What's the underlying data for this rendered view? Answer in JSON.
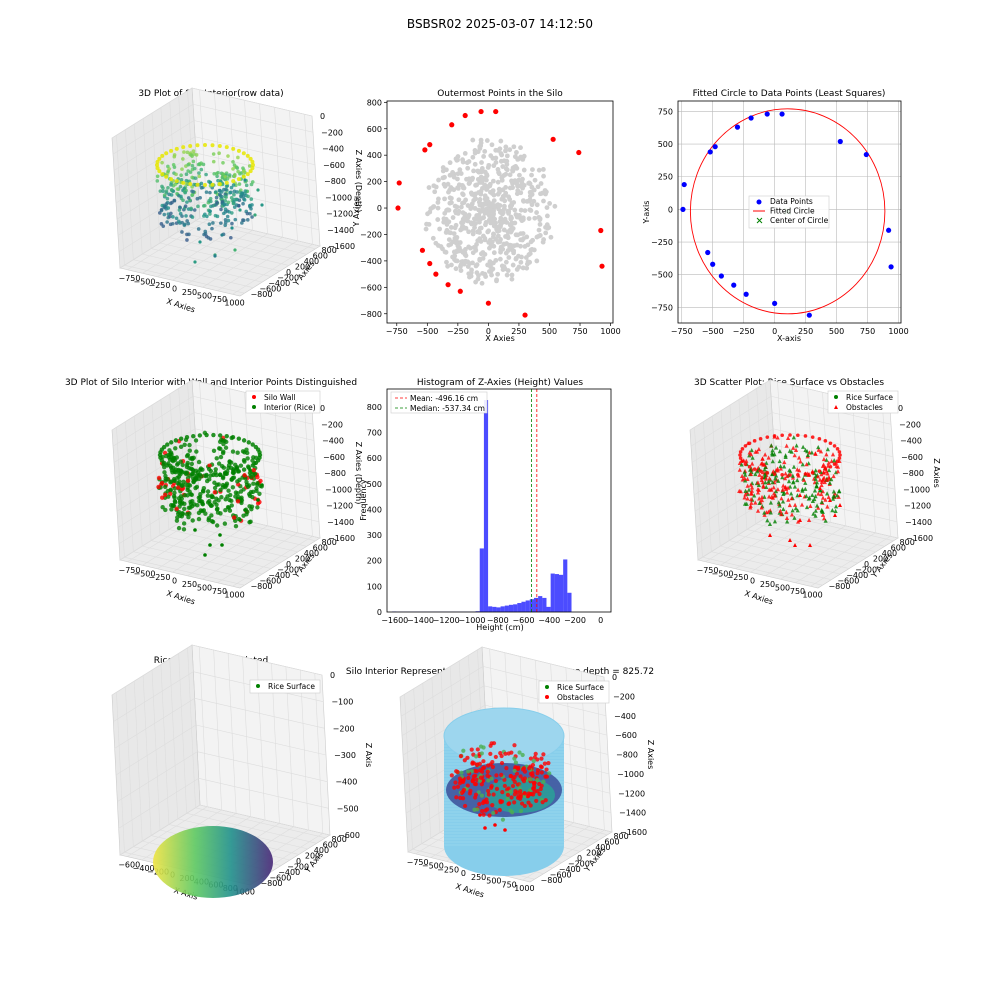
{
  "suptitle": "BSBSR02 2025-03-07 14:12:50",
  "colors": {
    "wall": "#ff0000",
    "rice": "#008000",
    "hist": "#0000ff",
    "gray": "#cfcfcf",
    "fit_circle": "#ff0000",
    "data_points": "#0000ff",
    "center": "#008000",
    "cylinder": "#87ceeb",
    "pane": "#f2f2f2",
    "grid": "#dddddd"
  },
  "panels": {
    "p1": {
      "title": "3D Plot of Silo Interior(row data)",
      "xlabel": "X Axies",
      "ylabel": "Y Axies",
      "zlabel": "Z Axies (Depth)",
      "xticks": [
        "−750",
        "−500",
        "−250",
        "0",
        "250",
        "500",
        "750",
        "1000"
      ],
      "yticks": [
        "800",
        "600",
        "400",
        "200",
        "0",
        "−200",
        "−400",
        "−600",
        "−800"
      ],
      "zticks": [
        "0",
        "−200",
        "−400",
        "−600",
        "−800",
        "−1000",
        "−1200",
        "−1400",
        "−1600"
      ]
    },
    "p4": {
      "title": "3D Plot of Silo Interior with Wall and Interior Points Distinguished",
      "xlabel": "X Axies",
      "ylabel": "Y Axies",
      "zlabel": "Z Axies (Depth)",
      "xticks": [
        "−750",
        "−500",
        "−250",
        "0",
        "250",
        "500",
        "750",
        "1000"
      ],
      "yticks": [
        "800",
        "600",
        "400",
        "200",
        "0",
        "−200",
        "−400",
        "−600",
        "−800"
      ],
      "zticks": [
        "0",
        "−200",
        "−400",
        "−600",
        "−800",
        "−1000",
        "−1200",
        "−1400",
        "−1600"
      ],
      "legend": [
        "Silo Wall",
        "Interior (Rice)"
      ]
    },
    "p6": {
      "title": "3D Scatter Plot: Rice Surface vs Obstacles",
      "xlabel": "X Axies",
      "ylabel": "Y Axies",
      "zlabel": "Z Axies",
      "xticks": [
        "−750",
        "−500",
        "−250",
        "0",
        "250",
        "500",
        "750",
        "1000"
      ],
      "yticks": [
        "800",
        "600",
        "400",
        "200",
        "0",
        "−200",
        "−400",
        "−600",
        "−800"
      ],
      "zticks": [
        "0",
        "−200",
        "−400",
        "−600",
        "−800",
        "−1000",
        "−1200",
        "−1400",
        "−1600"
      ],
      "legend": [
        "Rice Surface",
        "Obstacles"
      ]
    },
    "p7": {
      "title": "Rice Surface Interpolated",
      "subtitle": "depth = 825.72",
      "xlabel": "X Axis",
      "ylabel": "Y Axis",
      "zlabel": "Z Axis",
      "xticks": [
        "−600",
        "−400",
        "−200",
        "0",
        "200",
        "400",
        "600",
        "800",
        "1000"
      ],
      "yticks": [
        "800",
        "600",
        "400",
        "200",
        "0",
        "−200",
        "−400",
        "−600",
        "−800"
      ],
      "zticks": [
        "0",
        "−100",
        "−200",
        "−300",
        "−400",
        "−500",
        "−600"
      ],
      "legend": [
        "Rice Surface"
      ]
    },
    "p8": {
      "title": "Silo Interior Representation using weighted average depth = 825.72",
      "xlabel": "X Axies",
      "ylabel": "Y Axies",
      "zlabel": "Z Axies",
      "xticks": [
        "−750",
        "−500",
        "−250",
        "0",
        "250",
        "500",
        "750",
        "1000"
      ],
      "yticks": [
        "800",
        "600",
        "400",
        "200",
        "0",
        "−200",
        "−400",
        "−600",
        "−800"
      ],
      "zticks": [
        "0",
        "−200",
        "−400",
        "−600",
        "−800",
        "−1000",
        "−1200",
        "−1400",
        "−1600"
      ],
      "legend": [
        "Rice Surface",
        "Obstacles"
      ]
    }
  },
  "chart_data": [
    {
      "type": "scatter",
      "id": "outermost",
      "title": "Outermost Points in the Silo",
      "xlabel": "X Axies",
      "ylabel": "Y Axies",
      "xlim": [
        -830,
        1020
      ],
      "ylim": [
        -870,
        810
      ],
      "xticks": [
        -750,
        -500,
        -250,
        0,
        250,
        500,
        750,
        1000
      ],
      "yticks": [
        -800,
        -600,
        -400,
        -200,
        0,
        200,
        400,
        600,
        800
      ],
      "outer_points": [
        [
          -730,
          190
        ],
        [
          -740,
          0
        ],
        [
          -540,
          -320
        ],
        [
          -480,
          -420
        ],
        [
          -430,
          -500
        ],
        [
          -330,
          -580
        ],
        [
          -230,
          -630
        ],
        [
          0,
          -720
        ],
        [
          300,
          -810
        ],
        [
          930,
          -440
        ],
        [
          920,
          -170
        ],
        [
          740,
          420
        ],
        [
          530,
          520
        ],
        [
          60,
          730
        ],
        [
          -60,
          730
        ],
        [
          -190,
          700
        ],
        [
          -300,
          630
        ],
        [
          -480,
          480
        ],
        [
          -520,
          440
        ]
      ]
    },
    {
      "type": "scatter",
      "id": "fitted_circle",
      "title": "Fitted Circle to Data Points (Least Squares)",
      "xlabel": "X-axis",
      "ylabel": "Y-axis",
      "xlim": [
        -780,
        1020
      ],
      "ylim": [
        -870,
        830
      ],
      "xticks": [
        -750,
        -500,
        -250,
        0,
        250,
        500,
        750,
        1000
      ],
      "yticks": [
        -750,
        -500,
        -250,
        0,
        250,
        500,
        750
      ],
      "legend": [
        "Data Points",
        "Fitted Circle",
        "Center of Circle"
      ],
      "data_points": [
        [
          -730,
          190
        ],
        [
          -740,
          0
        ],
        [
          -540,
          -330
        ],
        [
          -500,
          -420
        ],
        [
          -430,
          -510
        ],
        [
          -330,
          -580
        ],
        [
          -230,
          -650
        ],
        [
          0,
          -720
        ],
        [
          280,
          -810
        ],
        [
          940,
          -440
        ],
        [
          920,
          -160
        ],
        [
          740,
          420
        ],
        [
          530,
          520
        ],
        [
          60,
          730
        ],
        [
          -60,
          730
        ],
        [
          -190,
          700
        ],
        [
          -300,
          630
        ],
        [
          -480,
          480
        ],
        [
          -520,
          440
        ]
      ],
      "circle": {
        "cx": 105,
        "cy": -15,
        "r": 785
      }
    },
    {
      "type": "bar",
      "id": "histogram",
      "title": "Histogram of Z-Axies (Height) Values",
      "xlabel": "Height (cm)",
      "ylabel": "Frequency",
      "xlim": [
        -1660,
        80
      ],
      "ylim": [
        0,
        870
      ],
      "xticks": [
        -1600,
        -1400,
        -1200,
        -1000,
        -800,
        -600,
        -400,
        -200,
        0
      ],
      "yticks": [
        0,
        100,
        200,
        300,
        400,
        500,
        600,
        700,
        800
      ],
      "bin_edges_start": -1620,
      "bin_width": 32.4,
      "values": [
        2,
        1,
        1,
        1,
        1,
        1,
        1,
        1,
        1,
        1,
        1,
        1,
        1,
        1,
        1,
        1,
        1,
        1,
        1,
        1,
        3,
        248,
        827,
        22,
        20,
        18,
        22,
        25,
        28,
        30,
        35,
        40,
        45,
        50,
        55,
        62,
        55,
        20,
        150,
        148,
        145,
        205,
        75
      ],
      "mean": -496.16,
      "median": -537.34,
      "legend": [
        "Mean: -496.16 cm",
        "Median: -537.34 cm"
      ]
    }
  ]
}
